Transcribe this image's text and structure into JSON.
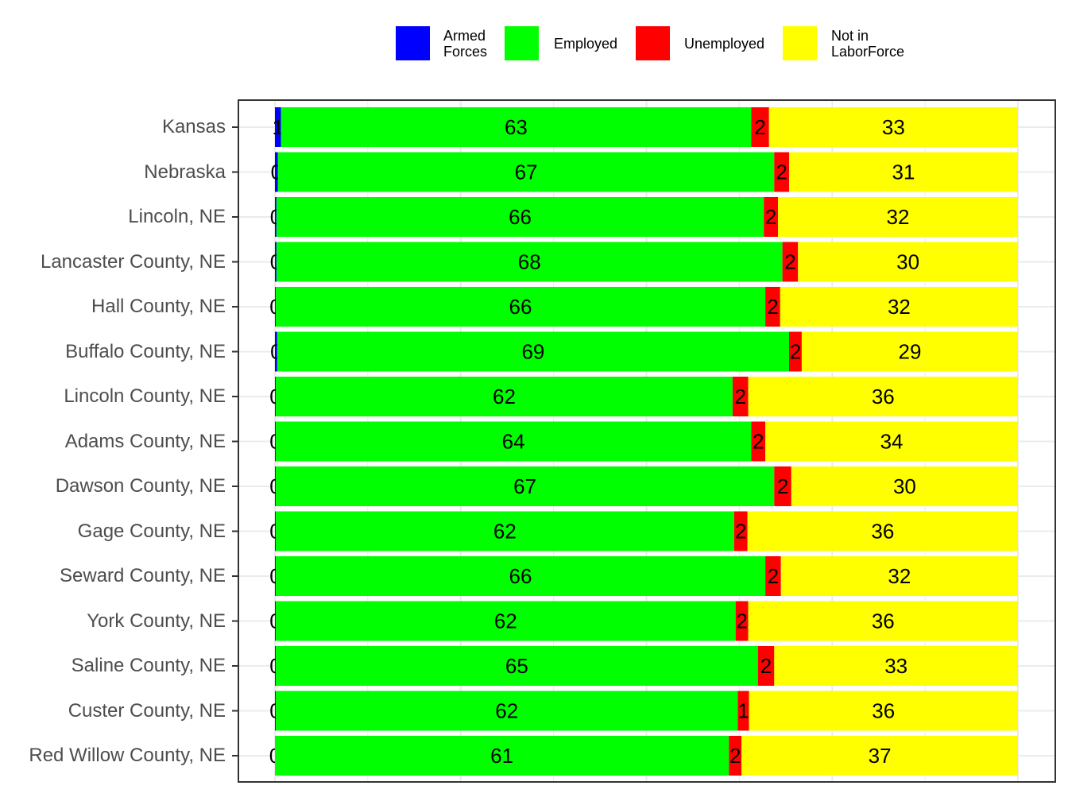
{
  "legend": [
    {
      "label": "Armed\nForces",
      "color": "#0000ff"
    },
    {
      "label": "Employed",
      "color": "#00ff00"
    },
    {
      "label": "Unemployed",
      "color": "#ff0000"
    },
    {
      "label": "Not in\nLaborForce",
      "color": "#ffff00"
    }
  ],
  "chart_data": {
    "type": "bar",
    "orientation": "horizontal",
    "stacked": true,
    "xlim": [
      0,
      100
    ],
    "grid": true,
    "legend_position": "top",
    "categories": [
      "Kansas",
      "Nebraska",
      "Lincoln, NE",
      "Lancaster County, NE",
      "Hall County, NE",
      "Buffalo County, NE",
      "Lincoln County, NE",
      "Adams County, NE",
      "Dawson County, NE",
      "Gage County, NE",
      "Seward County, NE",
      "York County, NE",
      "Saline County, NE",
      "Custer County, NE",
      "Red Willow County, NE"
    ],
    "series": [
      {
        "name": "Armed Forces",
        "color": "#0000ff",
        "values": [
          0.8,
          0.4,
          0.2,
          0.2,
          0.1,
          0.3,
          0.1,
          0.1,
          0.1,
          0.1,
          0.1,
          0.1,
          0.1,
          0.1,
          0.0
        ],
        "labels": [
          "1",
          "0",
          "0",
          "0",
          "0",
          "0",
          "0",
          "0",
          "0",
          "0",
          "0",
          "0",
          "0",
          "0",
          "0"
        ]
      },
      {
        "name": "Employed",
        "color": "#00ff00",
        "values": [
          63.3,
          66.8,
          65.6,
          68.1,
          65.9,
          68.9,
          61.5,
          64.0,
          67.1,
          61.7,
          65.9,
          61.9,
          64.9,
          62.2,
          61.1
        ],
        "labels": [
          "63",
          "67",
          "66",
          "68",
          "66",
          "69",
          "62",
          "64",
          "67",
          "62",
          "66",
          "62",
          "65",
          "62",
          "61"
        ]
      },
      {
        "name": "Unemployed",
        "color": "#ff0000",
        "values": [
          2.4,
          2.0,
          1.9,
          2.1,
          2.0,
          1.7,
          2.1,
          1.9,
          2.3,
          1.8,
          2.1,
          1.7,
          2.2,
          1.5,
          1.7
        ],
        "labels": [
          "2",
          "2",
          "2",
          "2",
          "2",
          "2",
          "2",
          "2",
          "2",
          "2",
          "2",
          "2",
          "2",
          "1",
          "2"
        ]
      },
      {
        "name": "Not in LaborForce",
        "color": "#ffff00",
        "values": [
          33.5,
          30.8,
          32.3,
          29.6,
          32.0,
          29.1,
          36.3,
          34.0,
          30.5,
          36.4,
          31.9,
          36.3,
          32.8,
          36.2,
          37.2
        ],
        "labels": [
          "33",
          "31",
          "32",
          "30",
          "32",
          "29",
          "36",
          "34",
          "30",
          "36",
          "32",
          "36",
          "33",
          "36",
          "37"
        ]
      }
    ]
  }
}
